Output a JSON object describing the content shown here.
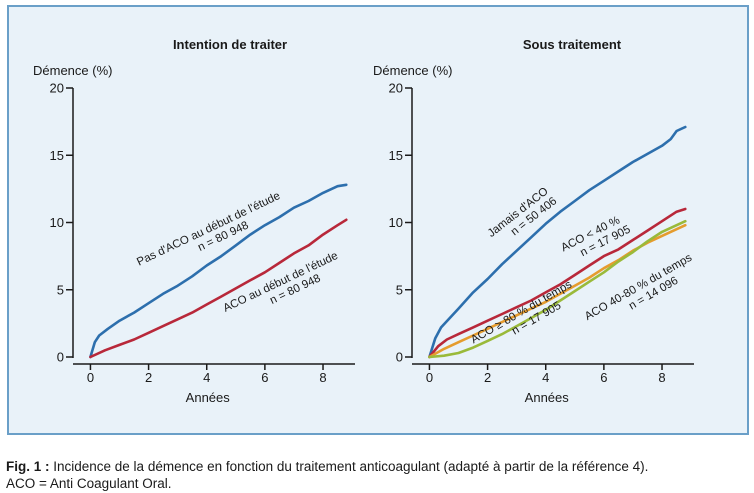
{
  "caption": {
    "label": "Fig. 1 :",
    "text": " Incidence de la démence en fonction du traitement anticoagulant (adapté à partir de la référence 4).",
    "line2": "ACO = Anti Coagulant Oral."
  },
  "chart_data": [
    {
      "type": "line",
      "title": "Intention de traiter",
      "ylabel": "Démence (%)",
      "xlabel": "Années",
      "xlim": [
        -0.6,
        9.1
      ],
      "ylim": [
        0,
        20
      ],
      "xticks": [
        0,
        2,
        4,
        6,
        8
      ],
      "yticks": [
        0,
        5,
        10,
        15,
        20
      ],
      "series": [
        {
          "name": "Pas d'ACO au début de l'étude",
          "n_label": "n = 80 948",
          "color": "#2d6fad",
          "x": [
            0,
            0.15,
            0.3,
            0.6,
            1,
            1.5,
            2,
            2.5,
            3,
            3.5,
            4,
            4.5,
            5,
            5.5,
            6,
            6.5,
            7,
            7.5,
            8,
            8.5,
            8.8
          ],
          "y": [
            0,
            1.1,
            1.6,
            2.1,
            2.7,
            3.3,
            4,
            4.7,
            5.3,
            6,
            6.8,
            7.5,
            8.3,
            9.1,
            9.8,
            10.4,
            11.1,
            11.6,
            12.2,
            12.7,
            12.8
          ]
        },
        {
          "name": "ACO au début de l'étude",
          "n_label": "n = 80 948",
          "color": "#b8283a",
          "x": [
            0,
            0.5,
            1,
            1.5,
            2,
            2.5,
            3,
            3.5,
            4,
            4.5,
            5,
            5.5,
            6,
            6.5,
            7,
            7.5,
            8,
            8.5,
            8.8
          ],
          "y": [
            0,
            0.5,
            0.9,
            1.3,
            1.8,
            2.3,
            2.8,
            3.3,
            3.9,
            4.5,
            5.1,
            5.7,
            6.3,
            7,
            7.7,
            8.3,
            9.1,
            9.8,
            10.2
          ]
        }
      ]
    },
    {
      "type": "line",
      "title": "Sous traitement",
      "ylabel": "Démence (%)",
      "xlabel": "Années",
      "xlim": [
        -0.6,
        9.1
      ],
      "ylim": [
        0,
        20
      ],
      "xticks": [
        0,
        2,
        4,
        6,
        8
      ],
      "yticks": [
        0,
        5,
        10,
        15,
        20
      ],
      "series": [
        {
          "name": "Jamais d'ACO",
          "n_label": "n = 50 406",
          "color": "#2d6fad",
          "x": [
            0,
            0.2,
            0.4,
            0.7,
            1,
            1.5,
            2,
            2.5,
            3,
            3.5,
            4,
            4.5,
            5,
            5.5,
            6,
            6.5,
            7,
            7.5,
            8,
            8.3,
            8.5,
            8.8
          ],
          "y": [
            0,
            1.4,
            2.2,
            2.9,
            3.6,
            4.8,
            5.8,
            6.9,
            7.9,
            8.9,
            9.9,
            10.8,
            11.6,
            12.4,
            13.1,
            13.8,
            14.5,
            15.1,
            15.7,
            16.2,
            16.8,
            17.1
          ]
        },
        {
          "name": "ACO < 40 %",
          "n_label": "n = 17 905",
          "color": "#b8283a",
          "x": [
            0,
            0.3,
            0.6,
            1,
            1.5,
            2,
            2.5,
            3,
            3.5,
            4,
            4.5,
            5,
            5.5,
            6,
            6.5,
            7,
            7.5,
            8,
            8.5,
            8.8
          ],
          "y": [
            0,
            0.8,
            1.3,
            1.7,
            2.2,
            2.7,
            3.2,
            3.7,
            4.2,
            4.8,
            5.4,
            6.1,
            6.8,
            7.5,
            8,
            8.7,
            9.4,
            10.1,
            10.8,
            11
          ]
        },
        {
          "name": "ACO ≥ 80 % du temps",
          "n_label": "n = 17 905",
          "color": "#e59c2e",
          "x": [
            0,
            0.5,
            1,
            1.5,
            2,
            2.5,
            3,
            3.5,
            4,
            4.5,
            5,
            5.5,
            6,
            6.5,
            7,
            7.5,
            8,
            8.5,
            8.8
          ],
          "y": [
            0,
            0.6,
            1.1,
            1.6,
            2.1,
            2.6,
            3.1,
            3.6,
            4.1,
            4.7,
            5.3,
            5.9,
            6.6,
            7.2,
            7.9,
            8.5,
            9,
            9.5,
            9.8
          ]
        },
        {
          "name": "ACO 40-80 % du temps",
          "n_label": "n = 14 096",
          "color": "#9aba3a",
          "x": [
            0,
            0.5,
            1,
            1.5,
            2,
            2.5,
            3,
            3.5,
            4,
            4.5,
            5,
            5.5,
            6,
            6.5,
            7,
            7.5,
            8,
            8.5,
            8.8
          ],
          "y": [
            0,
            0.1,
            0.3,
            0.7,
            1.2,
            1.7,
            2.3,
            2.9,
            3.5,
            4.2,
            4.9,
            5.6,
            6.3,
            7.1,
            7.8,
            8.6,
            9.3,
            9.8,
            10.1
          ]
        }
      ]
    }
  ]
}
